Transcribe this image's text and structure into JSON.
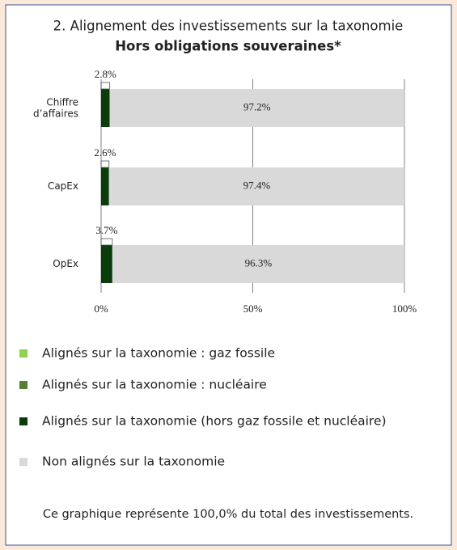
{
  "chart_data": {
    "type": "stacked-bar-horizontal",
    "title": "2. Alignement des investissements sur la taxonomie",
    "subtitle": "Hors obligations souveraines*",
    "categories": [
      "Chiffre d’affaires",
      "CapEx",
      "OpEx"
    ],
    "series": [
      {
        "name": "Alignés sur la taxonomie : gaz fossile",
        "color": "#92d050",
        "values": [
          0,
          0,
          0
        ]
      },
      {
        "name": "Alignés sur la taxonomie : nucléaire",
        "color": "#548235",
        "values": [
          0,
          0,
          0
        ]
      },
      {
        "name": "Alignés sur la taxonomie (hors gaz fossile et nucléaire)",
        "color": "#0b3d0b",
        "values": [
          2.8,
          2.6,
          3.7
        ],
        "value_labels": [
          "2.8%",
          "2.6%",
          "3.7%"
        ]
      },
      {
        "name": "Non alignés sur la taxonomie",
        "color": "#d9d9d9",
        "values": [
          97.2,
          97.4,
          96.3
        ],
        "value_labels": [
          "97.2%",
          "97.4%",
          "96.3%"
        ]
      }
    ],
    "xlim": [
      0,
      100
    ],
    "xticks": [
      {
        "value": 0,
        "label": "0%"
      },
      {
        "value": 50,
        "label": "50%"
      },
      {
        "value": 100,
        "label": "100%"
      }
    ],
    "grid": true,
    "note": "Ce graphique représente 100,0% du total des investissements."
  }
}
